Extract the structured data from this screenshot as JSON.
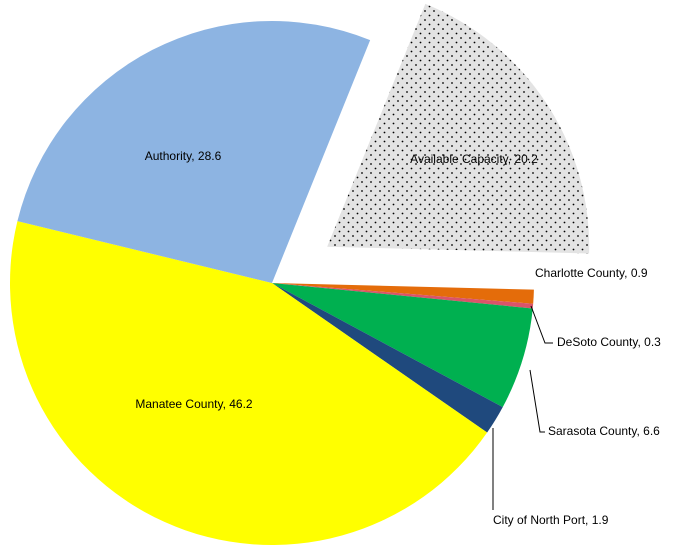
{
  "chart_data": {
    "type": "pie",
    "categories": [
      "Available Capacity",
      "Charlotte County",
      "DeSoto County",
      "Sarasota County",
      "City of North Port",
      "Manatee County",
      "Authority"
    ],
    "values": [
      20.2,
      0.9,
      0.3,
      6.6,
      1.9,
      46.2,
      28.6
    ],
    "colors": [
      "#e3e3e3",
      "#e46c0a",
      "#d9546a",
      "#00b050",
      "#1f497d",
      "#ffff00",
      "#8db4e2"
    ]
  }
}
